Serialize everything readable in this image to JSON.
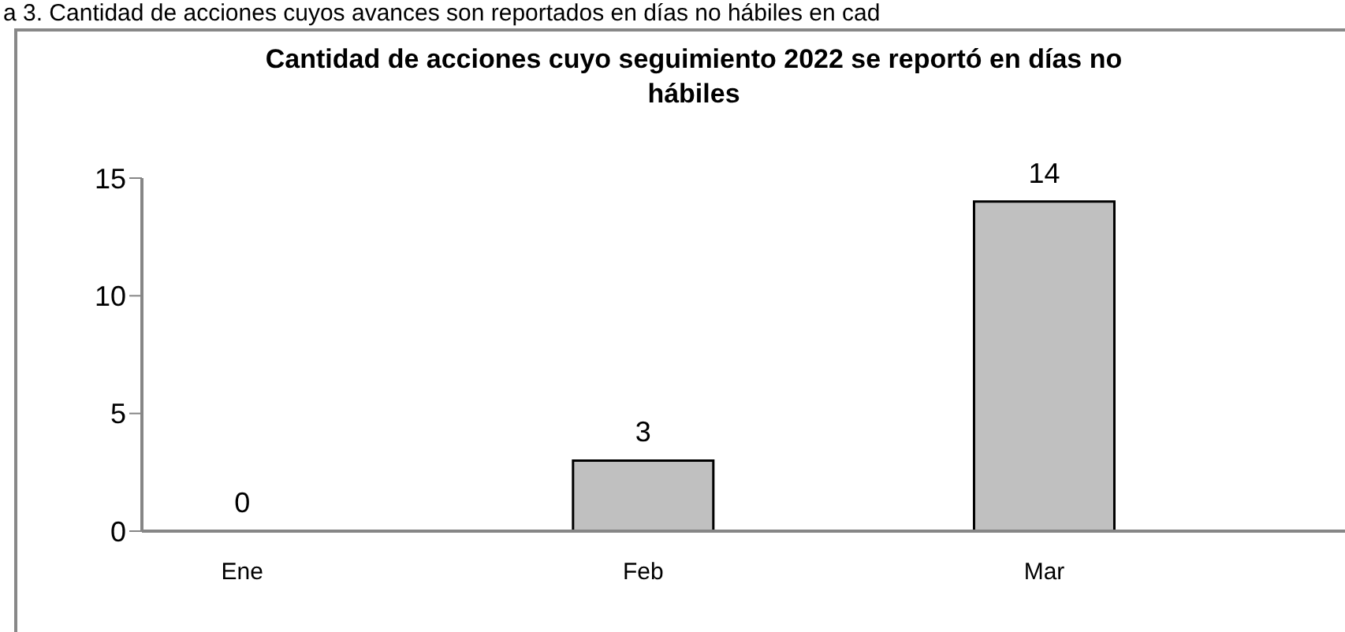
{
  "chart_data": {
    "type": "bar",
    "title": "Cantidad de acciones cuyo seguimiento 2022 se reportó en días no hábiles",
    "annotations": [
      "a 3. Cantidad de acciones cuyos avances son reportados en días no hábiles en cad"
    ],
    "categories": [
      "Ene",
      null,
      "Feb",
      null,
      "Mar",
      null
    ],
    "values": [
      0,
      null,
      3,
      null,
      14,
      null
    ],
    "color": "#c0c0c0",
    "ylim": [
      0,
      15
    ],
    "yticks": [
      0,
      5,
      10,
      15
    ],
    "grid": false,
    "legend": false,
    "data_labels": true
  }
}
